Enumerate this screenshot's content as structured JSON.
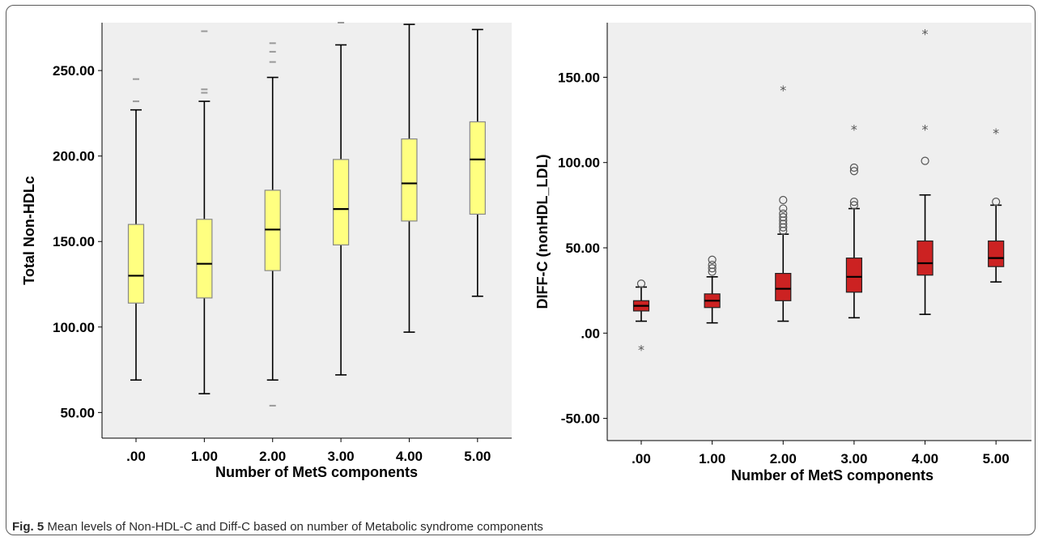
{
  "caption": {
    "label": "Fig. 5",
    "text": "Mean levels of Non-HDL-C and Diff-C based on number of Metabolic syndrome components"
  },
  "chart_data": [
    {
      "type": "box",
      "xlabel": "Number of MetS components",
      "ylabel": "Total Non-HDLc",
      "categories": [
        ".00",
        "1.00",
        "2.00",
        "3.00",
        "4.00",
        "5.00"
      ],
      "yticks": [
        "50.00",
        "100.00",
        "150.00",
        "200.00",
        "250.00"
      ],
      "ytick_values": [
        50,
        100,
        150,
        200,
        250
      ],
      "ylim": [
        35,
        278
      ],
      "box_color": "#ffff80",
      "outlier_style": "dash",
      "boxes": [
        {
          "low": 69,
          "q1": 114,
          "median": 130,
          "q3": 160,
          "high": 227,
          "outliers": [
            232,
            245
          ]
        },
        {
          "low": 61,
          "q1": 117,
          "median": 137,
          "q3": 163,
          "high": 232,
          "outliers": [
            237,
            239,
            273
          ]
        },
        {
          "low": 69,
          "q1": 133,
          "median": 157,
          "q3": 180,
          "high": 246,
          "outliers": [
            54,
            255,
            261,
            266
          ]
        },
        {
          "low": 72,
          "q1": 148,
          "median": 169,
          "q3": 198,
          "high": 265,
          "outliers": [
            278
          ]
        },
        {
          "low": 97,
          "q1": 162,
          "median": 184,
          "q3": 210,
          "high": 277,
          "outliers": []
        },
        {
          "low": 118,
          "q1": 166,
          "median": 198,
          "q3": 220,
          "high": 274,
          "outliers": []
        }
      ]
    },
    {
      "type": "box",
      "xlabel": "Number of MetS components",
      "ylabel": "DIFF-C (nonHDL_LDL)",
      "categories": [
        ".00",
        "1.00",
        "2.00",
        "3.00",
        "4.00",
        "5.00"
      ],
      "yticks": [
        "-50.00",
        ".00",
        "50.00",
        "100.00",
        "150.00"
      ],
      "ytick_values": [
        -50,
        0,
        50,
        100,
        150
      ],
      "ylim": [
        -63,
        182
      ],
      "box_color": "#cc2222",
      "boxes": [
        {
          "low": 7,
          "q1": 13,
          "median": 16,
          "q3": 19,
          "high": 27,
          "circles": [
            29
          ],
          "stars": [
            -9
          ]
        },
        {
          "low": 6,
          "q1": 15,
          "median": 19,
          "q3": 23,
          "high": 33,
          "circles": [
            36,
            38,
            40,
            43
          ],
          "stars": []
        },
        {
          "low": 7,
          "q1": 19,
          "median": 26,
          "q3": 35,
          "high": 58,
          "circles": [
            60,
            62,
            64,
            66,
            68,
            70,
            73,
            78
          ],
          "stars": [
            143
          ]
        },
        {
          "low": 9,
          "q1": 24,
          "median": 33,
          "q3": 44,
          "high": 73,
          "circles": [
            75,
            77,
            95,
            97
          ],
          "stars": [
            120
          ]
        },
        {
          "low": 11,
          "q1": 34,
          "median": 41,
          "q3": 54,
          "high": 81,
          "circles": [
            101
          ],
          "stars": [
            120,
            176
          ]
        },
        {
          "low": 30,
          "q1": 39,
          "median": 44,
          "q3": 54,
          "high": 75,
          "circles": [
            77
          ],
          "stars": [
            118
          ]
        }
      ]
    }
  ]
}
